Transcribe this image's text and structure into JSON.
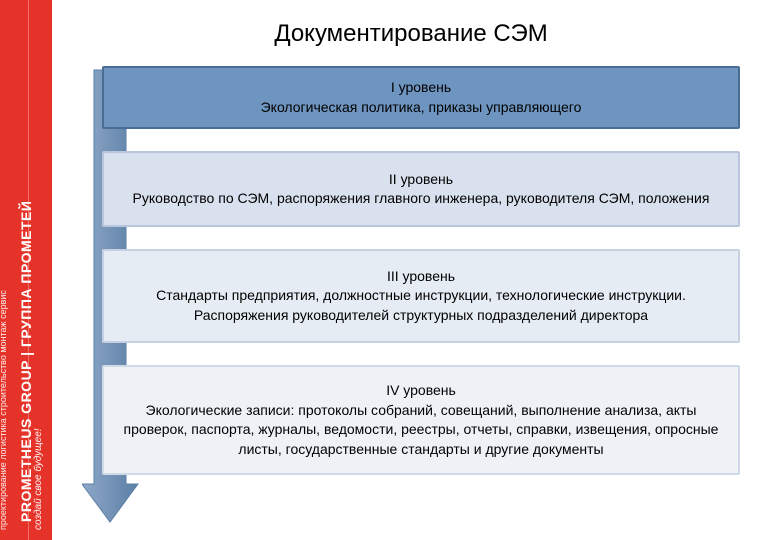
{
  "sidebar": {
    "main_text": "PROMETHEUS GROUP | ГРУППА ПРОМЕТЕЙ",
    "sub_text": "проектирование логистика строительство монтаж сервис",
    "tagline": "создай свое будущее!",
    "background_color": "#e63329",
    "text_color": "#ffffff"
  },
  "title": "Документирование СЭМ",
  "arrow": {
    "fill_start": "#8fa8c8",
    "fill_end": "#5b7fa6",
    "stroke": "#5b7fa6"
  },
  "levels": [
    {
      "label": "I уровень",
      "text": "Экологическая политика, приказы управляющего",
      "bg_color": "#6e94c0",
      "border_color": "#4a6d95",
      "min_height": 58
    },
    {
      "label": "II уровень",
      "text": "Руководство по СЭМ, распоряжения главного инженера, руководителя СЭМ, положения",
      "bg_color": "#d9e1ee",
      "border_color": "#b8c6db",
      "min_height": 76
    },
    {
      "label": "III уровень",
      "text": "Стандарты предприятия, должностные инструкции, технологические инструкции. Распоряжения руководителей структурных подразделений директора",
      "bg_color": "#e6ecf4",
      "border_color": "#c5d1e2",
      "min_height": 94
    },
    {
      "label": "IV уровень",
      "text": "Экологические записи: протоколы собраний, совещаний, выполнение анализа, акты проверок, паспорта, журналы, ведомости, реестры, отчеты, справки, извещения, опросные листы, государственные стандарты и другие документы",
      "bg_color": "#eef2f7",
      "border_color": "#cfd9e7",
      "min_height": 110
    }
  ]
}
